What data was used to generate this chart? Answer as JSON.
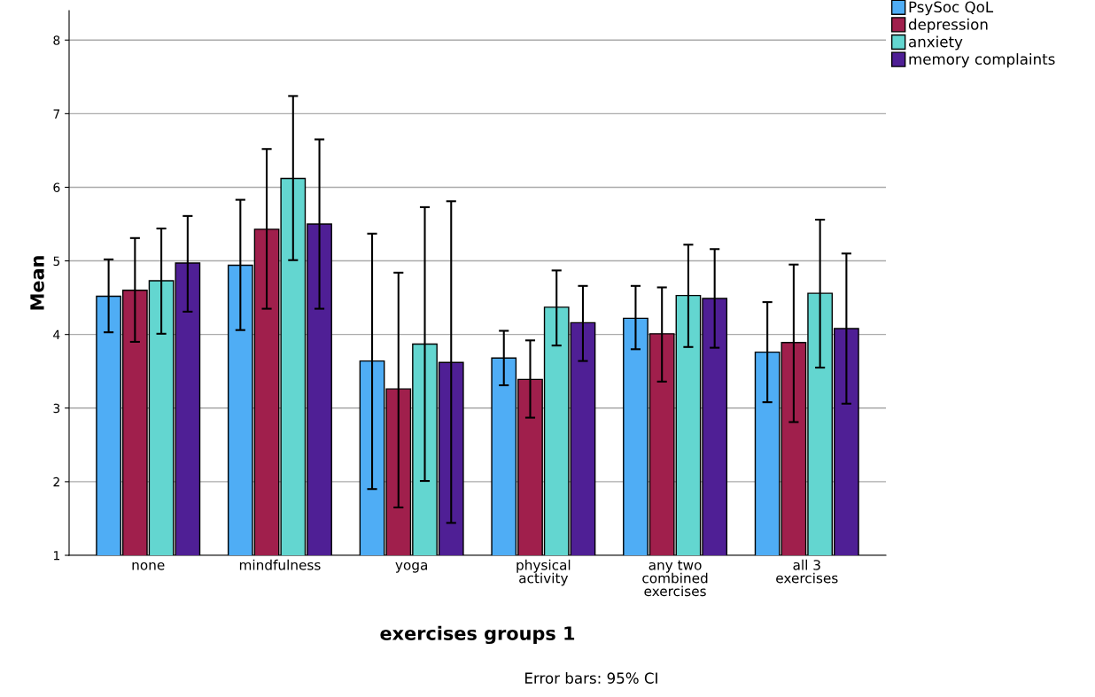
{
  "chart_data": {
    "type": "bar",
    "xlabel": "exercises groups 1",
    "ylabel": "Mean",
    "categories": [
      "none",
      "mindfulness",
      "yoga",
      "physical\nactivity",
      "any two\ncombined\nexercises",
      "all 3\nexercises"
    ],
    "series": [
      {
        "name": "PsySoc QoL",
        "color": "#4fadf5",
        "values": [
          4.52,
          4.94,
          3.64,
          3.68,
          4.22,
          3.76
        ],
        "errors": [
          [
            4.03,
            5.02
          ],
          [
            4.06,
            5.83
          ],
          [
            1.9,
            5.37
          ],
          [
            3.31,
            4.05
          ],
          [
            3.8,
            4.66
          ],
          [
            3.08,
            4.44
          ]
        ]
      },
      {
        "name": "depression",
        "color": "#a01f4c",
        "values": [
          4.6,
          5.43,
          3.26,
          3.39,
          4.01,
          3.89
        ],
        "errors": [
          [
            3.9,
            5.31
          ],
          [
            4.35,
            6.52
          ],
          [
            1.65,
            4.84
          ],
          [
            2.87,
            3.92
          ],
          [
            3.36,
            4.64
          ],
          [
            2.81,
            4.95
          ]
        ]
      },
      {
        "name": "anxiety",
        "color": "#63d6d0",
        "values": [
          4.73,
          6.12,
          3.87,
          4.37,
          4.53,
          4.56
        ],
        "errors": [
          [
            4.01,
            5.44
          ],
          [
            5.01,
            7.24
          ],
          [
            2.01,
            5.73
          ],
          [
            3.85,
            4.87
          ],
          [
            3.83,
            5.22
          ],
          [
            3.55,
            5.56
          ]
        ]
      },
      {
        "name": "memory complaints",
        "color": "#4f1f95",
        "values": [
          4.97,
          5.5,
          3.62,
          4.16,
          4.49,
          4.08
        ],
        "errors": [
          [
            4.31,
            5.61
          ],
          [
            4.35,
            6.65
          ],
          [
            1.44,
            5.81
          ],
          [
            3.64,
            4.66
          ],
          [
            3.82,
            5.16
          ],
          [
            3.06,
            5.1
          ]
        ]
      }
    ],
    "ylim": [
      1,
      8.4
    ],
    "yticks": [
      1,
      2,
      3,
      4,
      5,
      6,
      7,
      8
    ],
    "grid": "y",
    "legend": "top right",
    "annotations": [
      "Error bars: 95% CI"
    ]
  }
}
